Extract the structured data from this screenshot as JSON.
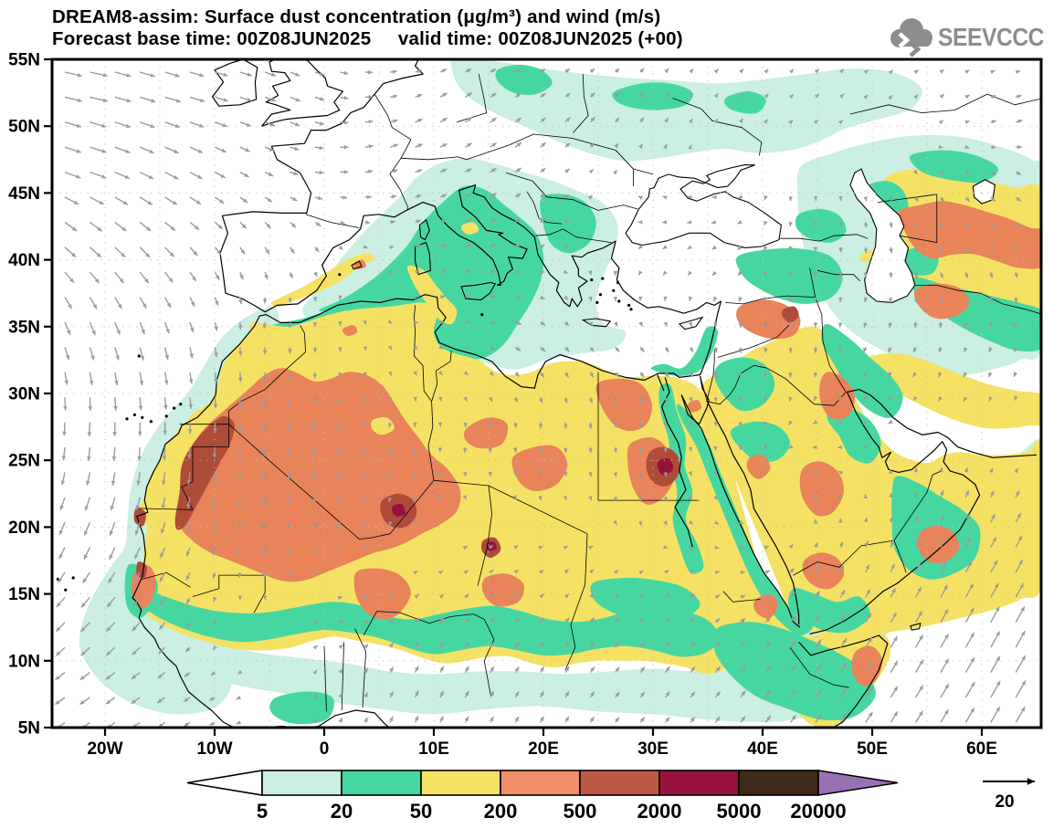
{
  "header": {
    "title_line1": "DREAM8-assim: Surface dust concentration (μg/m³) and wind (m/s)",
    "title_line2": "Forecast base time: 00Z08JUN2025     valid time: 00Z08JUN2025 (+00)"
  },
  "logo": {
    "text": "SEEVCCC",
    "color": "#8d8d8d"
  },
  "axes": {
    "lat_labels": [
      "55N",
      "50N",
      "45N",
      "40N",
      "35N",
      "30N",
      "25N",
      "20N",
      "15N",
      "10N",
      "5N"
    ],
    "lon_labels": [
      "20W",
      "10W",
      "0",
      "10E",
      "20E",
      "30E",
      "40E",
      "50E",
      "60E"
    ]
  },
  "colorbar": {
    "labels": [
      "5",
      "20",
      "50",
      "200",
      "500",
      "2000",
      "5000",
      "20000"
    ],
    "colors": [
      "#ffffff",
      "#cbefe2",
      "#46d7a0",
      "#f5e264",
      "#f18f66",
      "#bd5a45",
      "#97113c",
      "#3f2b19",
      "#9a70b5"
    ]
  },
  "map_colors": {
    "cyan": "#cbefe2",
    "green": "#46d7a0",
    "yellow": "#f5e264",
    "orange": "#e8835a",
    "brick": "#ae4c39",
    "maroon": "#97113c",
    "coast": "#000000",
    "grid": "#bdbdbd"
  },
  "wind": {
    "ref_label": "20",
    "arrow_color": "#9b9b9b",
    "field": [
      [
        -22,
        53,
        20,
        2
      ],
      [
        -14,
        52,
        18,
        4
      ],
      [
        -22,
        47,
        20,
        3
      ],
      [
        -14,
        46,
        15,
        7
      ],
      [
        -22,
        41,
        13,
        10
      ],
      [
        -16,
        40,
        11,
        12
      ],
      [
        -22,
        35,
        5,
        14
      ],
      [
        -16,
        33,
        3,
        15
      ],
      [
        -22,
        28,
        -2,
        15
      ],
      [
        -17,
        27,
        0,
        15
      ],
      [
        -22,
        21,
        -8,
        14
      ],
      [
        -18,
        20,
        -5,
        15
      ],
      [
        -22,
        14,
        -12,
        9
      ],
      [
        -18,
        13,
        -10,
        9
      ],
      [
        -22,
        8,
        -13,
        6
      ],
      [
        -16,
        8,
        -11,
        6
      ],
      [
        -10,
        31,
        2,
        12
      ],
      [
        -13,
        24,
        -2,
        14
      ],
      [
        -15,
        17,
        -7,
        10
      ],
      [
        -10,
        7,
        -9,
        3
      ],
      [
        0,
        6,
        2,
        -8
      ],
      [
        8,
        6,
        3,
        -9
      ],
      [
        -8,
        13,
        6,
        -6
      ],
      [
        0,
        13,
        7,
        -6
      ],
      [
        8,
        14,
        6,
        -7
      ],
      [
        16,
        13,
        6,
        -7
      ],
      [
        24,
        12,
        5,
        -7
      ],
      [
        32,
        12,
        5,
        -7
      ],
      [
        -6,
        18,
        -3,
        9
      ],
      [
        2,
        20,
        -5,
        9
      ],
      [
        0,
        27,
        -7,
        8
      ],
      [
        6,
        25,
        -6,
        9
      ],
      [
        -5,
        29,
        -2,
        11
      ],
      [
        14,
        26,
        -4,
        9
      ],
      [
        20,
        28,
        -2,
        10
      ],
      [
        16,
        19,
        4,
        -7
      ],
      [
        24,
        17,
        4,
        -8
      ],
      [
        32,
        16,
        4,
        -8
      ],
      [
        24,
        28,
        -3,
        10
      ],
      [
        30,
        27,
        -4,
        10
      ],
      [
        28,
        22,
        -2,
        9
      ],
      [
        30,
        20,
        -1,
        7
      ],
      [
        20,
        22,
        0,
        5
      ],
      [
        -5,
        36.5,
        -9,
        3
      ],
      [
        3,
        38.5,
        -9,
        -2
      ],
      [
        10,
        40,
        8,
        -8
      ],
      [
        14,
        37,
        6,
        -8
      ],
      [
        17,
        36,
        10,
        4
      ],
      [
        19,
        33,
        9,
        7
      ],
      [
        27,
        32.5,
        11,
        5
      ],
      [
        32,
        33,
        9,
        6
      ],
      [
        14,
        43,
        9,
        -7
      ],
      [
        20,
        42,
        5,
        -9
      ],
      [
        0,
        46,
        11,
        -4
      ],
      [
        6,
        48,
        9,
        -6
      ],
      [
        12,
        51,
        7,
        -8
      ],
      [
        -3,
        52,
        10,
        6
      ],
      [
        -9,
        53,
        12,
        2
      ],
      [
        -5,
        40,
        4,
        10
      ],
      [
        -2,
        42,
        6,
        8
      ],
      [
        18,
        48,
        7,
        -7
      ],
      [
        24,
        50,
        6,
        -8
      ],
      [
        30,
        51,
        5,
        -8
      ],
      [
        38,
        51,
        4,
        -8
      ],
      [
        46,
        52,
        6,
        -7
      ],
      [
        56,
        52,
        4,
        -6
      ],
      [
        63,
        50,
        9,
        -5
      ],
      [
        30,
        44,
        -9,
        -3
      ],
      [
        36,
        43.5,
        -10,
        -2
      ],
      [
        42,
        44,
        0,
        8
      ],
      [
        25,
        38,
        -4,
        8
      ],
      [
        30,
        39,
        -7,
        4
      ],
      [
        36,
        39,
        -8,
        4
      ],
      [
        38,
        34,
        1,
        9
      ],
      [
        44,
        33,
        2,
        9
      ],
      [
        50,
        42,
        0,
        10
      ],
      [
        56,
        44,
        5,
        8
      ],
      [
        62,
        45,
        7,
        6
      ],
      [
        52,
        49,
        -6,
        -3
      ],
      [
        50,
        34,
        -5,
        7
      ],
      [
        54,
        32,
        -6,
        7
      ],
      [
        58,
        30,
        -4,
        8
      ],
      [
        62,
        32,
        -5,
        7
      ],
      [
        56,
        38,
        5,
        8
      ],
      [
        62,
        38,
        0,
        8
      ],
      [
        40,
        29,
        -4,
        8
      ],
      [
        45,
        26,
        -8,
        -2
      ],
      [
        45,
        22,
        -9,
        -2
      ],
      [
        45,
        17,
        2,
        -9
      ],
      [
        50,
        17,
        3,
        -10
      ],
      [
        36,
        20,
        6,
        7
      ],
      [
        39,
        16,
        7,
        6
      ],
      [
        50,
        27,
        -7,
        5
      ],
      [
        57,
        22,
        4,
        -10
      ],
      [
        54,
        24,
        2,
        -9
      ],
      [
        58,
        14,
        9,
        -17
      ],
      [
        62,
        12,
        10,
        -19
      ],
      [
        65,
        18,
        8,
        -16
      ],
      [
        54,
        10,
        8,
        -14
      ],
      [
        60,
        7,
        10,
        -18
      ],
      [
        65,
        8,
        11,
        -19
      ],
      [
        50,
        6,
        7,
        -11
      ],
      [
        44,
        9,
        6,
        -9
      ],
      [
        48,
        11,
        7,
        -10
      ],
      [
        38,
        9,
        5,
        -8
      ],
      [
        30,
        9,
        4,
        -7
      ],
      [
        22,
        8,
        3,
        -7
      ],
      [
        14,
        8,
        3,
        -8
      ],
      [
        20,
        6,
        3,
        -7
      ],
      [
        42,
        14,
        5,
        -7
      ],
      [
        8,
        9,
        3,
        -9
      ]
    ]
  }
}
